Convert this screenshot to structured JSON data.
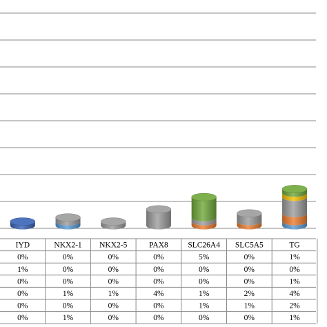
{
  "chart_data": {
    "type": "bar",
    "stacked": true,
    "style": "3d-cylinder",
    "grid": true,
    "categories": [
      "IYD",
      "NKX2-1",
      "NKX2-5",
      "PAX8",
      "SLC26A4",
      "SLC5A5",
      "TG"
    ],
    "row_labels_visible": false,
    "series": [
      {
        "values": [
          0,
          0,
          0,
          0,
          5,
          0,
          1
        ],
        "labels": [
          "0%",
          "0%",
          "0%",
          "0%",
          "5%",
          "0%",
          "1%"
        ],
        "color": "#70a83a"
      },
      {
        "values": [
          1,
          0,
          0,
          0,
          0,
          0,
          0
        ],
        "labels": [
          "1%",
          "0%",
          "0%",
          "0%",
          "0%",
          "0%",
          "0%"
        ],
        "color": "#3a64b8"
      },
      {
        "values": [
          0,
          0,
          0,
          0,
          0,
          0,
          1
        ],
        "labels": [
          "0%",
          "0%",
          "0%",
          "0%",
          "0%",
          "0%",
          "1%"
        ],
        "color": "#f5c000"
      },
      {
        "values": [
          0,
          1,
          1,
          4,
          1,
          2,
          4
        ],
        "labels": [
          "0%",
          "1%",
          "1%",
          "4%",
          "1%",
          "2%",
          "4%"
        ],
        "color": "#9c9c9c"
      },
      {
        "values": [
          0,
          0,
          0,
          0,
          1,
          1,
          2
        ],
        "labels": [
          "0%",
          "0%",
          "0%",
          "0%",
          "1%",
          "1%",
          "2%"
        ],
        "color": "#ed7d31"
      },
      {
        "values": [
          0,
          1,
          0,
          0,
          0,
          0,
          1
        ],
        "labels": [
          "0%",
          "1%",
          "0%",
          "0%",
          "0%",
          "0%",
          "1%"
        ],
        "color": "#5b9bd5"
      }
    ]
  }
}
